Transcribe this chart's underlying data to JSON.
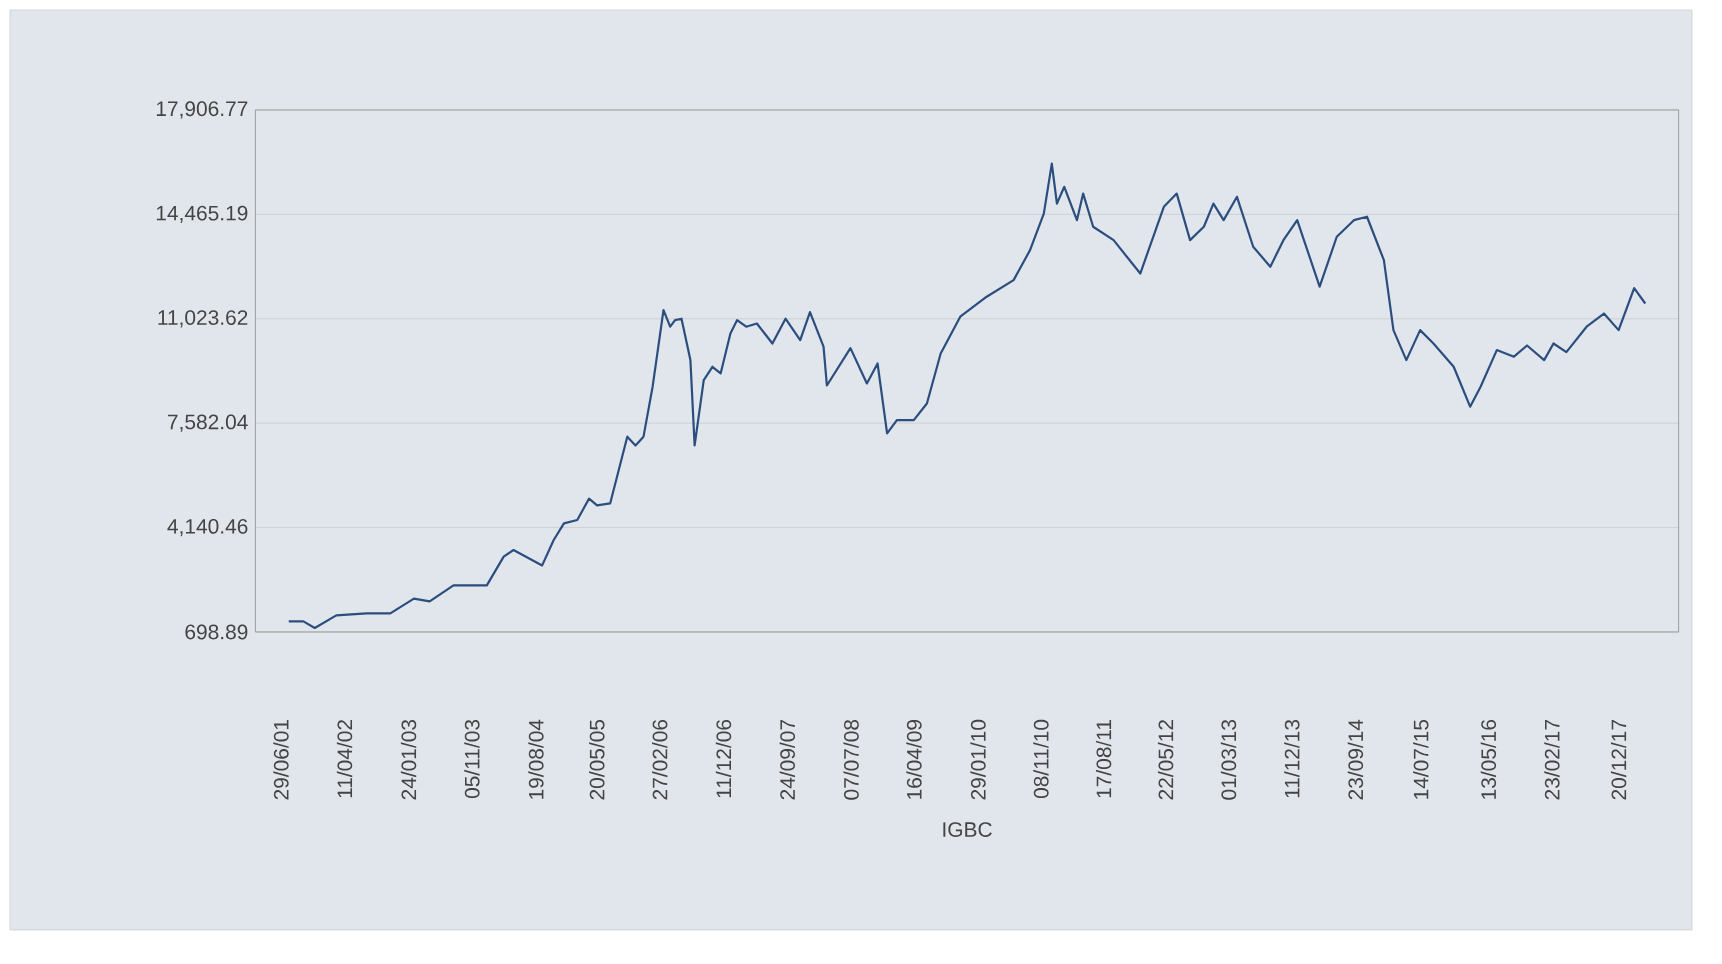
{
  "chart_data": {
    "type": "line",
    "xlabel": "IGBC",
    "color": "#2b4e7e",
    "grid": "y",
    "xlim": [
      "2001-03-06",
      "2018-09-16"
    ],
    "ylim": [
      698.89,
      17906.77
    ],
    "yticks": [
      {
        "value": 698.89,
        "label": "698.89"
      },
      {
        "value": 4140.46,
        "label": "4,140.46"
      },
      {
        "value": 7582.04,
        "label": "7,582.04"
      },
      {
        "value": 11023.62,
        "label": "11,023.62"
      },
      {
        "value": 14465.19,
        "label": "14,465.19"
      },
      {
        "value": 17906.77,
        "label": "17,906.77"
      }
    ],
    "xticks": [
      {
        "value": "2001-06-29",
        "label": "29/06/01"
      },
      {
        "value": "2002-04-11",
        "label": "11/04/02"
      },
      {
        "value": "2003-01-24",
        "label": "24/01/03"
      },
      {
        "value": "2003-11-05",
        "label": "05/11/03"
      },
      {
        "value": "2004-08-19",
        "label": "19/08/04"
      },
      {
        "value": "2005-05-20",
        "label": "20/05/05"
      },
      {
        "value": "2006-02-27",
        "label": "27/02/06"
      },
      {
        "value": "2006-12-11",
        "label": "11/12/06"
      },
      {
        "value": "2007-09-24",
        "label": "24/09/07"
      },
      {
        "value": "2008-07-07",
        "label": "07/07/08"
      },
      {
        "value": "2009-04-16",
        "label": "16/04/09"
      },
      {
        "value": "2010-01-29",
        "label": "29/01/10"
      },
      {
        "value": "2010-11-08",
        "label": "08/11/10"
      },
      {
        "value": "2011-08-17",
        "label": "17/08/11"
      },
      {
        "value": "2012-05-22",
        "label": "22/05/12"
      },
      {
        "value": "2013-03-01",
        "label": "01/03/13"
      },
      {
        "value": "2013-12-11",
        "label": "11/12/13"
      },
      {
        "value": "2014-09-23",
        "label": "23/09/14"
      },
      {
        "value": "2015-07-14",
        "label": "14/07/15"
      },
      {
        "value": "2016-05-13",
        "label": "13/05/16"
      },
      {
        "value": "2017-02-23",
        "label": "23/02/17"
      },
      {
        "value": "2017-12-20",
        "label": "20/12/17"
      }
    ],
    "x": [
      "2001-08-03",
      "2001-10-08",
      "2001-11-28",
      "2002-03-05",
      "2002-07-19",
      "2002-11-03",
      "2003-02-17",
      "2003-04-29",
      "2003-08-14",
      "2004-01-11",
      "2004-03-27",
      "2004-05-10",
      "2004-09-16",
      "2004-11-07",
      "2004-12-23",
      "2005-02-21",
      "2005-04-15",
      "2005-05-21",
      "2005-07-19",
      "2005-10-04",
      "2005-11-10",
      "2005-12-16",
      "2006-01-26",
      "2006-03-16",
      "2006-04-15",
      "2006-05-07",
      "2006-06-05",
      "2006-07-15",
      "2006-08-03",
      "2006-09-13",
      "2006-10-22",
      "2006-11-28",
      "2007-01-11",
      "2007-02-10",
      "2007-03-23",
      "2007-05-10",
      "2007-07-19",
      "2007-09-16",
      "2007-11-21",
      "2008-01-04",
      "2008-03-05",
      "2008-03-20",
      "2008-07-04",
      "2008-09-16",
      "2008-11-03",
      "2008-12-16",
      "2009-01-29",
      "2009-04-15",
      "2009-06-13",
      "2009-08-14",
      "2009-11-10",
      "2010-03-09",
      "2010-07-08",
      "2010-09-20",
      "2010-11-21",
      "2010-12-27",
      "2011-01-19",
      "2011-02-21",
      "2011-04-19",
      "2011-05-17",
      "2011-07-01",
      "2011-10-01",
      "2012-01-29",
      "2012-05-14",
      "2012-07-11",
      "2012-09-09",
      "2012-11-10",
      "2012-12-23",
      "2013-02-07",
      "2013-04-08",
      "2013-06-20",
      "2013-09-05",
      "2013-11-03",
      "2014-01-04",
      "2014-04-15",
      "2014-07-01",
      "2014-09-16",
      "2014-11-14",
      "2015-01-29",
      "2015-03-13",
      "2015-05-10",
      "2015-07-11",
      "2015-09-09",
      "2015-12-09",
      "2016-02-21",
      "2016-04-08",
      "2016-06-20",
      "2016-09-05",
      "2016-11-03",
      "2017-01-19",
      "2017-03-02",
      "2017-04-29",
      "2017-07-29",
      "2017-10-15",
      "2017-12-20",
      "2018-02-28",
      "2018-04-19"
    ],
    "values": [
      1048,
      1048,
      830,
      1246,
      1312,
      1312,
      1800,
      1707,
      2234,
      2234,
      3183,
      3401,
      2893,
      3730,
      4277,
      4390,
      5094,
      4870,
      4936,
      7137,
      6847,
      7137,
      8785,
      11309,
      10762,
      10979,
      11025,
      9661,
      6847,
      9002,
      9441,
      9221,
      10538,
      10979,
      10762,
      10868,
      10208,
      11025,
      10320,
      11243,
      10103,
      8825,
      10057,
      8891,
      9549,
      7243,
      7684,
      7684,
      8231,
      9879,
      11091,
      11750,
      12297,
      13286,
      14492,
      16139,
      14821,
      15375,
      14274,
      15150,
      14057,
      13615,
      12515,
      14716,
      15150,
      13615,
      14057,
      14821,
      14274,
      15045,
      13398,
      12739,
      13615,
      14274,
      12080,
      13727,
      14274,
      14387,
      12956,
      10650,
      9661,
      10650,
      10208,
      9441,
      8126,
      8785,
      9991,
      9773,
      10142,
      9661,
      10208,
      9925,
      10762,
      11197,
      10650,
      12034,
      11527
    ]
  }
}
